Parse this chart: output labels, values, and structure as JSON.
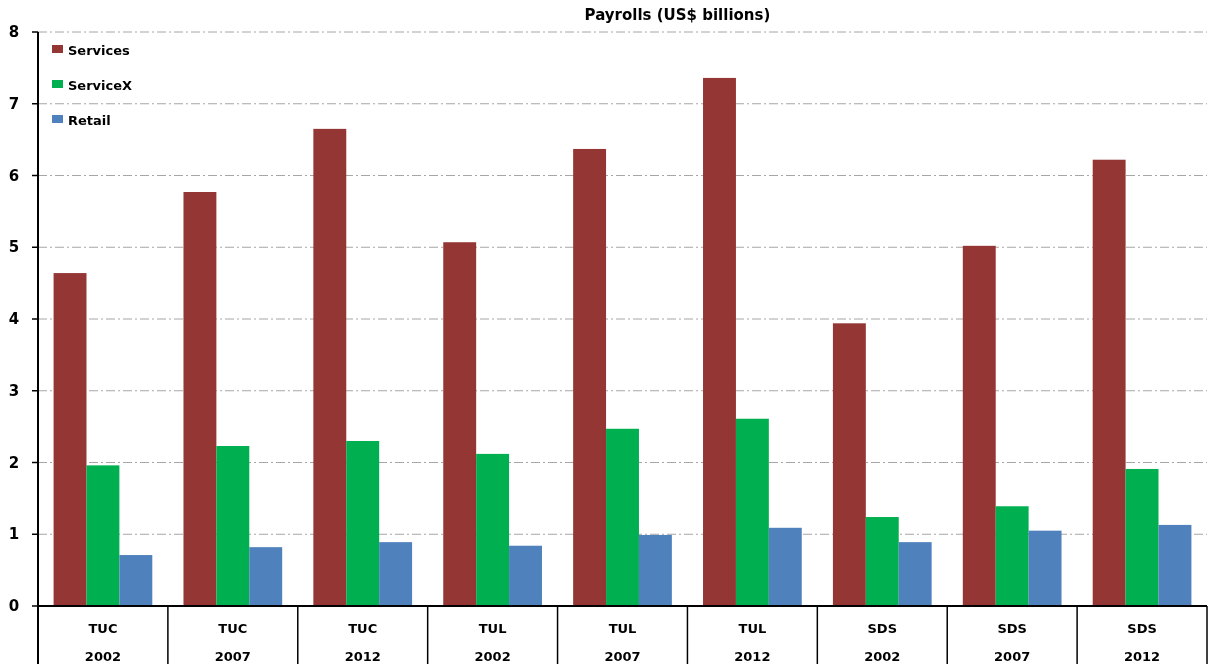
{
  "chart_data": {
    "type": "bar",
    "title": "Payrolls (US$ billions)",
    "categories": [
      "TUC\n2002",
      "TUC\n2007",
      "TUC\n2012",
      "TUL\n2002",
      "TUL\n2007",
      "TUL\n2012",
      "SDS\n2002",
      "SDS\n2007",
      "SDS\n2012"
    ],
    "series": [
      {
        "name": "Services",
        "color": "#943634",
        "values": [
          4.64,
          5.77,
          6.65,
          5.07,
          6.37,
          7.36,
          3.94,
          5.02,
          6.22
        ]
      },
      {
        "name": "ServiceX",
        "color": "#00b050",
        "values": [
          1.96,
          2.23,
          2.3,
          2.12,
          2.47,
          2.61,
          1.24,
          1.39,
          1.91
        ]
      },
      {
        "name": "Retail",
        "color": "#4f81bd",
        "values": [
          0.71,
          0.82,
          0.89,
          0.84,
          0.99,
          1.09,
          0.89,
          1.05,
          1.13
        ]
      }
    ],
    "ylim": [
      0,
      8
    ],
    "yticks": [
      0,
      1,
      2,
      3,
      4,
      5,
      6,
      7,
      8
    ],
    "grid": "y",
    "legend": "top left"
  }
}
